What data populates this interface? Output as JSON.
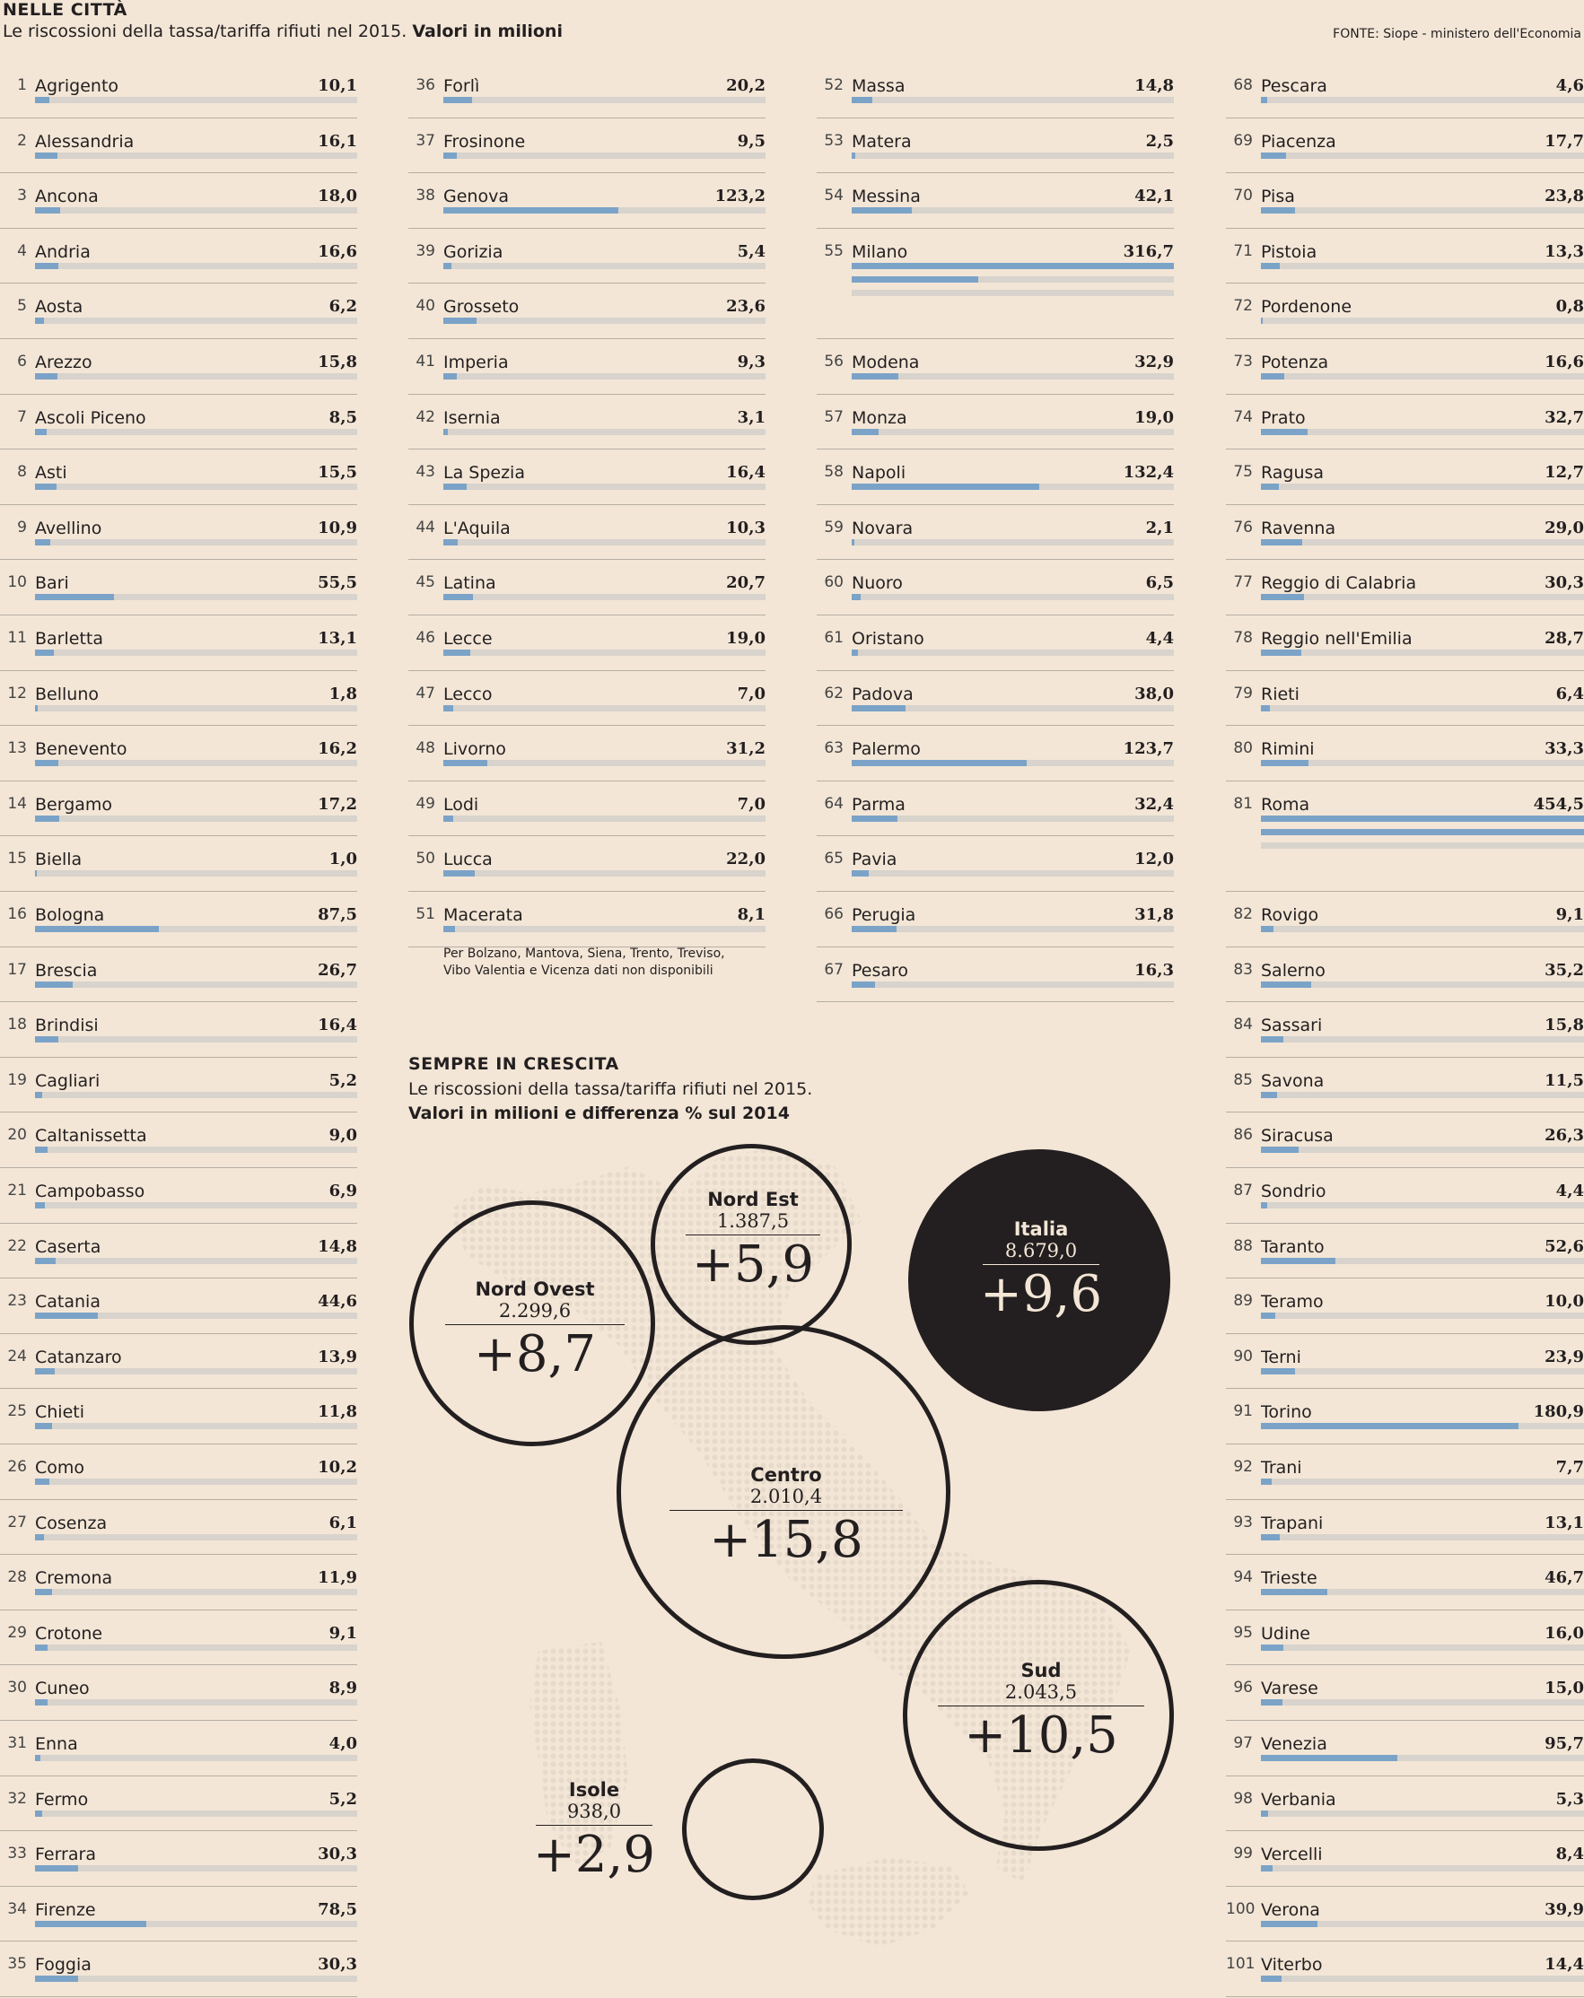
{
  "header": {
    "title": "NELLE CITTÀ",
    "subtitle_main": "Le riscossioni della tassa/tariffa rifiuti nel 2015.",
    "subtitle_bold": "Valori in milioni",
    "source": "FONTE: Siope - ministero dell'Economia"
  },
  "note": {
    "line1": "Per Bolzano, Mantova, Siena, Trento, Treviso,",
    "line2": "Vibo Valentia e Vicenza dati non disponibili"
  },
  "section2": {
    "title": "SEMPRE IN CRESCITA",
    "line1": "Le riscossioni della tassa/tariffa rifiuti nel 2015.",
    "line2": "Valori in milioni e differenza % sul 2014"
  },
  "chart_data": [
    {
      "type": "bar",
      "title": "NELLE CITTÀ",
      "unit": "Valori in milioni",
      "categories": [
        "Agrigento",
        "Alessandria",
        "Ancona",
        "Andria",
        "Aosta",
        "Arezzo",
        "Ascoli Piceno",
        "Asti",
        "Avellino",
        "Bari",
        "Barletta",
        "Belluno",
        "Benevento",
        "Bergamo",
        "Biella",
        "Bologna",
        "Brescia",
        "Brindisi",
        "Cagliari",
        "Caltanissetta",
        "Campobasso",
        "Caserta",
        "Catania",
        "Catanzaro",
        "Chieti",
        "Como",
        "Cosenza",
        "Cremona",
        "Crotone",
        "Cuneo",
        "Enna",
        "Fermo",
        "Ferrara",
        "Firenze",
        "Foggia",
        "Forlì",
        "Frosinone",
        "Genova",
        "Gorizia",
        "Grosseto",
        "Imperia",
        "Isernia",
        "La Spezia",
        "L'Aquila",
        "Latina",
        "Lecce",
        "Lecco",
        "Livorno",
        "Lodi",
        "Lucca",
        "Macerata",
        "Massa",
        "Matera",
        "Messina",
        "Milano",
        "Modena",
        "Monza",
        "Napoli",
        "Novara",
        "Nuoro",
        "Oristano",
        "Padova",
        "Palermo",
        "Parma",
        "Pavia",
        "Perugia",
        "Pesaro",
        "Pescara",
        "Piacenza",
        "Pisa",
        "Pistoia",
        "Pordenone",
        "Potenza",
        "Prato",
        "Ragusa",
        "Ravenna",
        "Reggio di Calabria",
        "Reggio nell'Emilia",
        "Rieti",
        "Rimini",
        "Roma",
        "Rovigo",
        "Salerno",
        "Sassari",
        "Savona",
        "Siracusa",
        "Sondrio",
        "Taranto",
        "Teramo",
        "Terni",
        "Torino",
        "Trani",
        "Trapani",
        "Trieste",
        "Udine",
        "Varese",
        "Venezia",
        "Verbania",
        "Vercelli",
        "Verona",
        "Viterbo"
      ],
      "values": [
        10.1,
        16.1,
        18.0,
        16.6,
        6.2,
        15.8,
        8.5,
        15.5,
        10.9,
        55.5,
        13.1,
        1.8,
        16.2,
        17.2,
        1.0,
        87.5,
        26.7,
        16.4,
        5.2,
        9.0,
        6.9,
        14.8,
        44.6,
        13.9,
        11.8,
        10.2,
        6.1,
        11.9,
        9.1,
        8.9,
        4.0,
        5.2,
        30.3,
        78.5,
        30.3,
        20.2,
        9.5,
        123.2,
        5.4,
        23.6,
        9.3,
        3.1,
        16.4,
        10.3,
        20.7,
        19.0,
        7.0,
        31.2,
        7.0,
        22.0,
        8.1,
        14.8,
        2.5,
        42.1,
        316.7,
        32.9,
        19.0,
        132.4,
        2.1,
        6.5,
        4.4,
        38.0,
        123.7,
        32.4,
        12.0,
        31.8,
        16.3,
        4.6,
        17.7,
        23.8,
        13.3,
        0.8,
        16.6,
        32.7,
        12.7,
        29.0,
        30.3,
        28.7,
        6.4,
        33.3,
        454.5,
        9.1,
        35.2,
        15.8,
        11.5,
        26.3,
        4.4,
        52.6,
        10.0,
        23.9,
        180.9,
        7.7,
        13.1,
        46.7,
        16.0,
        15.0,
        95.7,
        5.3,
        8.4,
        39.9,
        14.4
      ],
      "labels": [
        "10,1",
        "16,1",
        "18,0",
        "16,6",
        "6,2",
        "15,8",
        "8,5",
        "15,5",
        "10,9",
        "55,5",
        "13,1",
        "1,8",
        "16,2",
        "17,2",
        "1,0",
        "87,5",
        "26,7",
        "16,4",
        "5,2",
        "9,0",
        "6,9",
        "14,8",
        "44,6",
        "13,9",
        "11,8",
        "10,2",
        "6,1",
        "11,9",
        "9,1",
        "8,9",
        "4,0",
        "5,2",
        "30,3",
        "78,5",
        "30,3",
        "20,2",
        "9,5",
        "123,2",
        "5,4",
        "23,6",
        "9,3",
        "3,1",
        "16,4",
        "10,3",
        "20,7",
        "19,0",
        "7,0",
        "31,2",
        "7,0",
        "22,0",
        "8,1",
        "14,8",
        "2,5",
        "42,1",
        "316,7",
        "32,9",
        "19,0",
        "132,4",
        "2,1",
        "6,5",
        "4,4",
        "38,0",
        "123,7",
        "32,4",
        "12,0",
        "31,8",
        "16,3",
        "4,6",
        "17,7",
        "23,8",
        "13,3",
        "0,8",
        "16,6",
        "32,7",
        "12,7",
        "29,0",
        "30,3",
        "28,7",
        "6,4",
        "33,3",
        "454,5",
        "9,1",
        "35,2",
        "15,8",
        "11,5",
        "26,3",
        "4,4",
        "52,6",
        "10,0",
        "23,9",
        "180,9",
        "7,7",
        "13,1",
        "46,7",
        "16,0",
        "15,0",
        "95,7",
        "5,3",
        "8,4",
        "39,9",
        "14,4"
      ]
    },
    {
      "type": "bubble",
      "title": "SEMPRE IN CRESCITA",
      "categories": [
        "Nord Ovest",
        "Nord Est",
        "Centro",
        "Sud",
        "Isole",
        "Italia"
      ],
      "values_millions": [
        2299.6,
        1387.5,
        2010.4,
        2043.5,
        938.0,
        8679.0
      ],
      "value_labels": [
        "2.299,6",
        "1.387,5",
        "2.010,4",
        "2.043,5",
        "938,0",
        "8.679,0"
      ],
      "change_pct": [
        8.7,
        5.9,
        15.8,
        10.5,
        2.9,
        9.6
      ],
      "change_labels": [
        "+8,7",
        "+5,9",
        "+15,8",
        "+10,5",
        "+2,9",
        "+9,6"
      ],
      "colors": {
        "bubble_outline": "#231f20",
        "total_fill": "#231f20",
        "total_text": "#f3e6d6"
      }
    }
  ],
  "colors": {
    "background": "#f3e6d6",
    "bar": "#7ba3c8",
    "track": "#d8d3cc",
    "text": "#231f20"
  }
}
